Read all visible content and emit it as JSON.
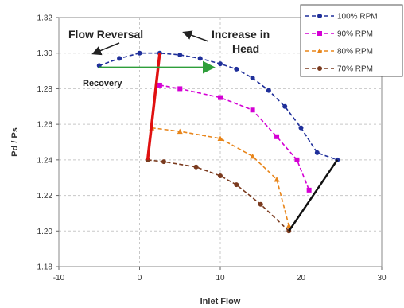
{
  "chart_data": {
    "type": "line",
    "xlabel": "Inlet Flow",
    "ylabel": "Pd / Ps",
    "xlim": [
      -10,
      30
    ],
    "ylim": [
      1.18,
      1.32
    ],
    "xticks": [
      -10,
      0,
      10,
      20,
      30
    ],
    "yticks": [
      1.18,
      1.2,
      1.22,
      1.24,
      1.26,
      1.28,
      1.3,
      1.32
    ],
    "xtick_labels": [
      "-10",
      "0",
      "10",
      "20",
      "30"
    ],
    "ytick_labels": [
      "1.18",
      "1.20",
      "1.22",
      "1.24",
      "1.26",
      "1.28",
      "1.30",
      "1.32"
    ],
    "grid": "dashed horizontal and vertical",
    "legend_position": "top-right",
    "series": [
      {
        "name": "100% RPM",
        "color": "#1f2f9a",
        "marker": "circle",
        "x": [
          -5,
          -2.5,
          0,
          2.5,
          5,
          7.5,
          10,
          12,
          14,
          16,
          18,
          20,
          22,
          24.5
        ],
        "y": [
          1.293,
          1.297,
          1.3,
          1.3,
          1.299,
          1.297,
          1.294,
          1.291,
          1.286,
          1.279,
          1.27,
          1.258,
          1.244,
          1.24
        ]
      },
      {
        "name": "90% RPM",
        "color": "#d400d4",
        "marker": "square",
        "x": [
          2.5,
          5,
          10,
          14,
          17,
          19.5,
          21
        ],
        "y": [
          1.282,
          1.28,
          1.275,
          1.268,
          1.253,
          1.24,
          1.223
        ]
      },
      {
        "name": "80% RPM",
        "color": "#e8851a",
        "marker": "triangle",
        "x": [
          1.5,
          5,
          10,
          14,
          17,
          18.5
        ],
        "y": [
          1.258,
          1.256,
          1.252,
          1.242,
          1.229,
          1.203
        ]
      },
      {
        "name": "70% RPM",
        "color": "#7a3a1e",
        "marker": "circle",
        "x": [
          1,
          3,
          7,
          10,
          12,
          15,
          18.5
        ],
        "y": [
          1.24,
          1.239,
          1.236,
          1.231,
          1.226,
          1.215,
          1.2
        ]
      }
    ],
    "surge_line": {
      "color": "#e01010",
      "x": [
        1,
        2.5
      ],
      "y": [
        1.24,
        1.3
      ]
    },
    "choke_line": {
      "color": "#111111",
      "x": [
        18.5,
        24.5
      ],
      "y": [
        1.2,
        1.24
      ]
    },
    "recovery_arrow": {
      "color": "#2e9e3a",
      "x": [
        -5,
        9
      ],
      "y": [
        1.292,
        1.292
      ]
    },
    "annotations": {
      "flow_reversal": "Flow Reversal",
      "increase_in": "Increase in",
      "head": "Head",
      "recovery": "Recovery"
    }
  }
}
